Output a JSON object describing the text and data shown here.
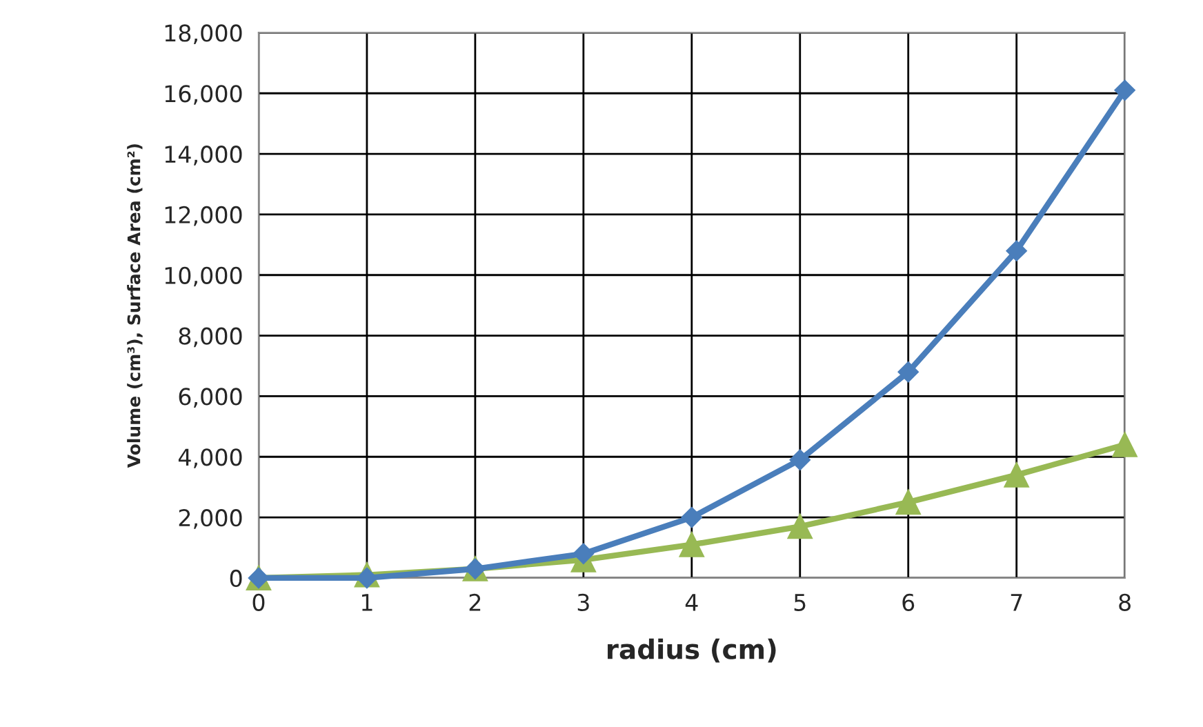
{
  "chart_data": {
    "type": "line",
    "xlabel": "radius (cm)",
    "ylabel": "Volume (cm³), Surface Area (cm²)",
    "x": [
      0,
      1,
      2,
      3,
      4,
      5,
      6,
      7,
      8
    ],
    "series": [
      {
        "color": "#4a7ebb",
        "marker": "diamond",
        "values": [
          0,
          0,
          300,
          800,
          2000,
          3900,
          6800,
          10800,
          16100
        ]
      },
      {
        "color": "#98b954",
        "marker": "triangle",
        "values": [
          0,
          100,
          300,
          600,
          1100,
          1700,
          2500,
          3400,
          4400
        ]
      }
    ],
    "xlim": [
      0,
      8
    ],
    "xticks": [
      0,
      1,
      2,
      3,
      4,
      5,
      6,
      7,
      8
    ],
    "ylim": [
      0,
      18000
    ],
    "yticks": [
      {
        "value": 0,
        "label": "0"
      },
      {
        "value": 2000,
        "label": "2,000"
      },
      {
        "value": 4000,
        "label": "4,000"
      },
      {
        "value": 6000,
        "label": "6,000"
      },
      {
        "value": 8000,
        "label": "8,000"
      },
      {
        "value": 10000,
        "label": "10,000"
      },
      {
        "value": 12000,
        "label": "12,000"
      },
      {
        "value": 14000,
        "label": "14,000"
      },
      {
        "value": 16000,
        "label": "16,000"
      },
      {
        "value": 18000,
        "label": "18,000"
      }
    ],
    "grid": true,
    "line_style": "solid"
  }
}
